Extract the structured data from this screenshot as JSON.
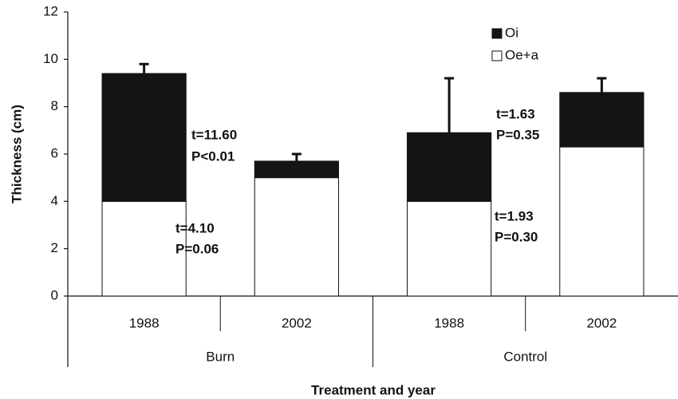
{
  "chart_data": {
    "type": "stacked-bar",
    "x_label": "Treatment and year",
    "y_label": "Thickness (cm)",
    "categories": [
      "1988",
      "2002",
      "1988",
      "2002"
    ],
    "groups": [
      "Burn",
      "Control"
    ],
    "series": [
      {
        "name": "Oe+a",
        "color": "#ffffff",
        "values": [
          4.0,
          5.0,
          4.0,
          6.3
        ]
      },
      {
        "name": "Oi",
        "color": "#141414",
        "values": [
          5.4,
          0.7,
          2.9,
          2.3
        ],
        "errors": [
          0.4,
          0.3,
          2.3,
          0.6
        ]
      }
    ],
    "ylim": [
      0,
      12
    ],
    "yticks": [
      0,
      2,
      4,
      6,
      8,
      10,
      12
    ],
    "annotations": [
      "t=11.60",
      "P<0.01",
      "t=4.10",
      "P=0.06",
      "t=1.93",
      "P=0.30",
      "t=1.63",
      "P=0.35"
    ]
  }
}
